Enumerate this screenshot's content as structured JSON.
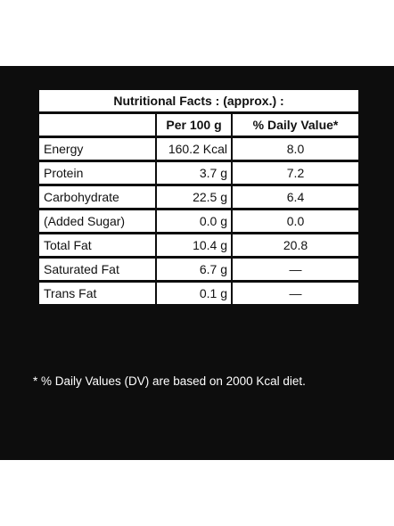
{
  "table": {
    "title": "Nutritional Facts : (approx.) :",
    "columns": [
      "",
      "Per 100 g",
      "% Daily Value*"
    ],
    "rows": [
      [
        "Energy",
        "160.2 Kcal",
        "8.0"
      ],
      [
        "Protein",
        "3.7 g",
        "7.2"
      ],
      [
        "Carbohydrate",
        "22.5 g",
        "6.4"
      ],
      [
        "(Added Sugar)",
        "0.0 g",
        "0.0"
      ],
      [
        "Total Fat",
        "10.4 g",
        "20.8"
      ],
      [
        "Saturated Fat",
        "6.7 g",
        "—"
      ],
      [
        "Trans Fat",
        "0.1 g",
        "—"
      ]
    ]
  },
  "footnote": "* % Daily Values (DV) are based on 2000 Kcal diet."
}
